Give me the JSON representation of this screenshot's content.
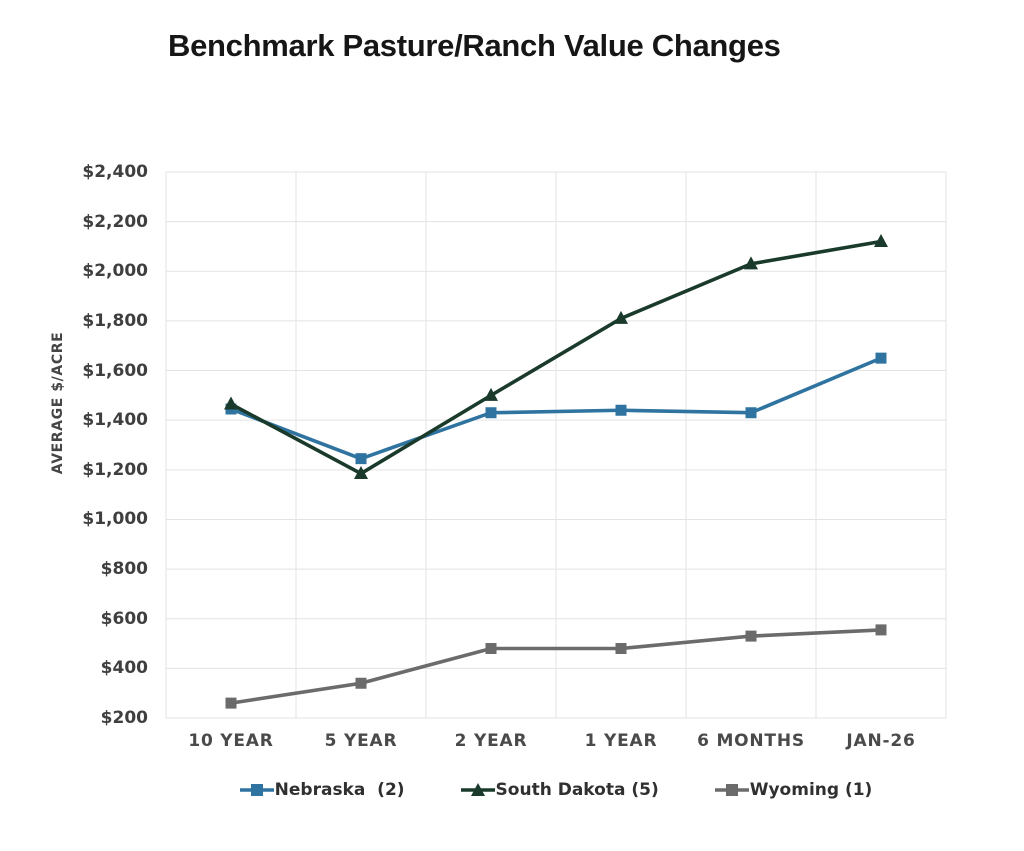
{
  "page": {
    "title": "Benchmark Pasture/Ranch Value Changes"
  },
  "chart_data": {
    "type": "line",
    "title": "Benchmark Pasture/Ranch Value Changes",
    "xlabel": "",
    "ylabel": "AVERAGE $/ACRE",
    "categories": [
      "10 YEAR",
      "5 YEAR",
      "2 YEAR",
      "1 YEAR",
      "6 MONTHS",
      "JAN-26"
    ],
    "series": [
      {
        "name": "Nebraska  (2)",
        "marker": "square",
        "color": "#2f74a0",
        "values": [
          1445,
          1245,
          1430,
          1440,
          1430,
          1650
        ]
      },
      {
        "name": "South Dakota (5)",
        "marker": "triangle",
        "color": "#1a3a2b",
        "values": [
          1465,
          1185,
          1500,
          1810,
          2030,
          2120
        ]
      },
      {
        "name": "Wyoming (1)",
        "marker": "square",
        "color": "#6b6b6b",
        "values": [
          260,
          340,
          480,
          480,
          530,
          555
        ]
      }
    ],
    "ylim": [
      200,
      2400
    ],
    "y_step": 200,
    "y_ticks": [
      "$2,400",
      "$2,200",
      "$2,000",
      "$1,800",
      "$1,600",
      "$1,400",
      "$1,200",
      "$1,000",
      "$800",
      "$600",
      "$400",
      "$200"
    ],
    "grid": true,
    "legend_position": "bottom",
    "colors": {
      "background": "#ffffff",
      "gridline": "#e3e3e3",
      "title": "#161616",
      "y_tick_label": "#3f3f3f",
      "x_tick_label": "#4a4a4a",
      "axis_title": "#454545",
      "legend_text": "#303030"
    }
  }
}
